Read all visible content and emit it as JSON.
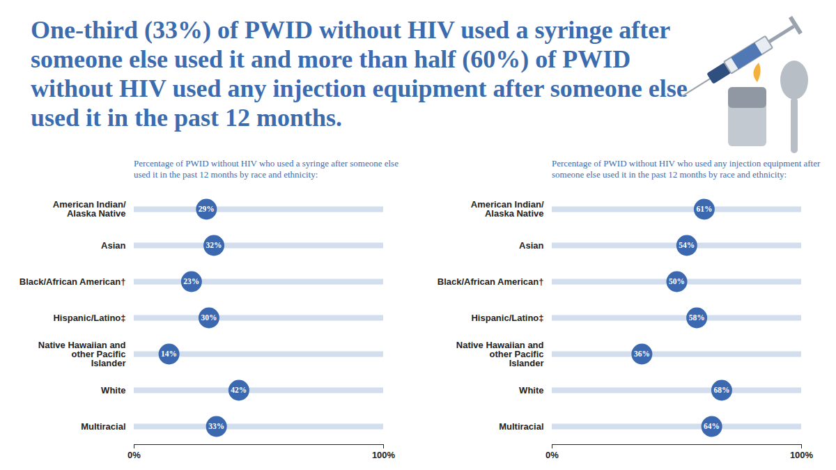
{
  "title": "One-third (33%) of PWID without HIV used a syringe after someone else used it and more than half (60%) of PWID without HIV used any injection equipment after someone else used it in the past 12 months.",
  "chart_data": [
    {
      "type": "dot",
      "orientation": "horizontal",
      "title": "Percentage of PWID without HIV who used a syringe after someone else used it in the past 12 months by race and ethnicity:",
      "categories": [
        "American Indian/Alaska Native",
        "Asian",
        "Black/African American†",
        "Hispanic/Latino‡",
        "Native Hawaiian and other Pacific Islander",
        "White",
        "Multiracial"
      ],
      "values": [
        29,
        32,
        23,
        30,
        14,
        42,
        33
      ],
      "value_labels": [
        "29%",
        "32%",
        "23%",
        "30%",
        "14%",
        "42%",
        "33%"
      ],
      "data_labels": true,
      "color": "#3b68ae",
      "grid": false,
      "xlim": [
        0,
        100
      ],
      "xticks": [
        {
          "value": 0,
          "label": "0%"
        },
        {
          "value": 100,
          "label": "100%"
        }
      ]
    },
    {
      "type": "dot",
      "orientation": "horizontal",
      "title": "Percentage of PWID without HIV who used any injection equipment after someone else used it in the past 12 months by race and ethnicity:",
      "categories": [
        "American Indian/Alaska Native",
        "Asian",
        "Black/African American†",
        "Hispanic/Latino‡",
        "Native Hawaiian and other Pacific Islander",
        "White",
        "Multiracial"
      ],
      "values": [
        61,
        54,
        50,
        58,
        36,
        68,
        64
      ],
      "value_labels": [
        "61%",
        "54%",
        "50%",
        "58%",
        "36%",
        "68%",
        "64%"
      ],
      "data_labels": true,
      "color": "#3b68ae",
      "grid": false,
      "xlim": [
        0,
        100
      ],
      "xticks": [
        {
          "value": 0,
          "label": "0%"
        },
        {
          "value": 100,
          "label": "100%"
        }
      ]
    }
  ]
}
